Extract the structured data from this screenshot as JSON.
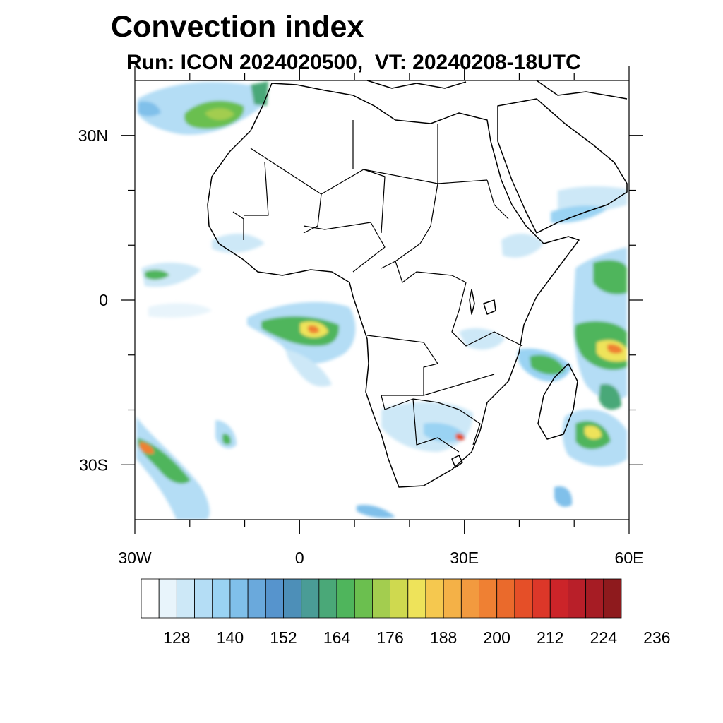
{
  "header": {
    "title": "Convection index",
    "subtitle": "Run: ICON 2024020500,  VT: 20240208-18UTC"
  },
  "map": {
    "projection": "cylindrical equidistant",
    "lon_range": [
      -30,
      60
    ],
    "lat_range": [
      -40,
      40
    ],
    "lon_ticks": [
      {
        "lon": -30,
        "label": "30W"
      },
      {
        "lon": 0,
        "label": "0"
      },
      {
        "lon": 30,
        "label": "30E"
      },
      {
        "lon": 60,
        "label": "60E"
      }
    ],
    "lat_ticks": [
      {
        "lat": 30,
        "label": "30N"
      },
      {
        "lat": 0,
        "label": "0"
      },
      {
        "lat": -30,
        "label": "30S"
      }
    ],
    "minor_lon_ticks": [
      -20,
      -10,
      10,
      20,
      40,
      50
    ],
    "minor_lat_ticks": [
      20,
      10,
      -10,
      -20
    ]
  },
  "colorbar": {
    "colors": [
      "#ffffff",
      "#e8f4fb",
      "#cde8f7",
      "#b4ddf5",
      "#9ad3f3",
      "#80c0ea",
      "#6aa9dc",
      "#5694cd",
      "#4d8fb8",
      "#4a9c96",
      "#4aa878",
      "#4fb55c",
      "#6bbf4f",
      "#a3cd4f",
      "#cfd94f",
      "#eee35a",
      "#f5c84f",
      "#f4b147",
      "#f29a3f",
      "#ef8033",
      "#ea6a2c",
      "#e54f28",
      "#dc3729",
      "#cc2429",
      "#b91f29",
      "#a61c24",
      "#8e1a1d"
    ],
    "labels": [
      "128",
      "140",
      "152",
      "164",
      "176",
      "188",
      "200",
      "212",
      "224",
      "236"
    ],
    "label_values": [
      128,
      140,
      152,
      164,
      176,
      188,
      200,
      212,
      224,
      236
    ]
  }
}
